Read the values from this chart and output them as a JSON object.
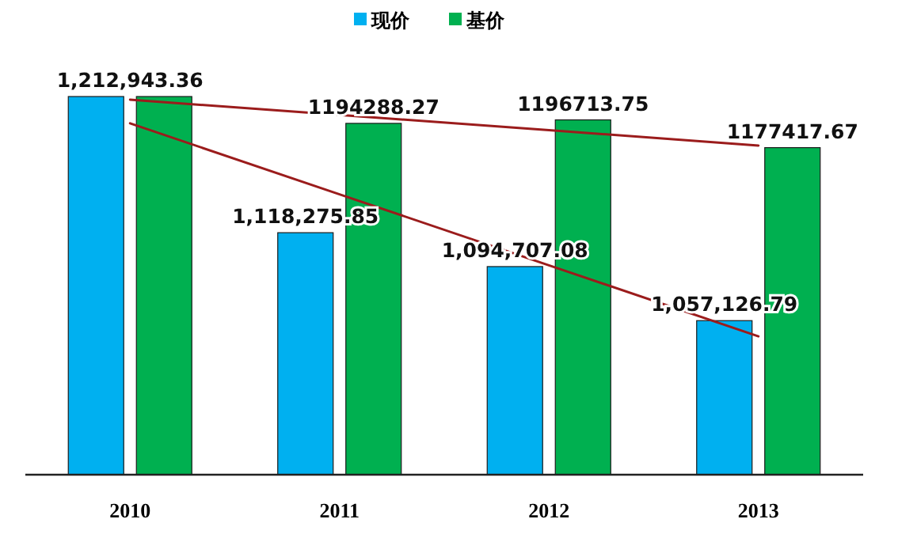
{
  "chart_data": {
    "type": "bar",
    "categories": [
      "2010",
      "2011",
      "2012",
      "2013"
    ],
    "ylim": [
      950000,
      1212943.36
    ],
    "tick_labels": "x",
    "legend": "top",
    "series": [
      {
        "name": "现价",
        "color": "#00b0f0",
        "values": [
          1212943.36,
          1118275.85,
          1094707.08,
          1057126.79
        ],
        "value_labels": [
          "1,212,943.36",
          "1,118,275.85",
          "1,094,707.08",
          "1,057,126.79"
        ]
      },
      {
        "name": "基价",
        "color": "#00b050",
        "values": [
          1212943.36,
          1194288.27,
          1196713.75,
          1177417.67
        ],
        "value_labels": [
          null,
          "1194288.27",
          "1196713.75",
          "1177417.67"
        ]
      },
      {
        "type": "line",
        "color": "#9b1c1c",
        "values": [
          1210750,
          1200133,
          1189517,
          1178900
        ]
      },
      {
        "type": "line",
        "color": "#9b1c1c",
        "values": [
          1194300,
          1144933,
          1095567,
          1046200
        ]
      }
    ]
  }
}
